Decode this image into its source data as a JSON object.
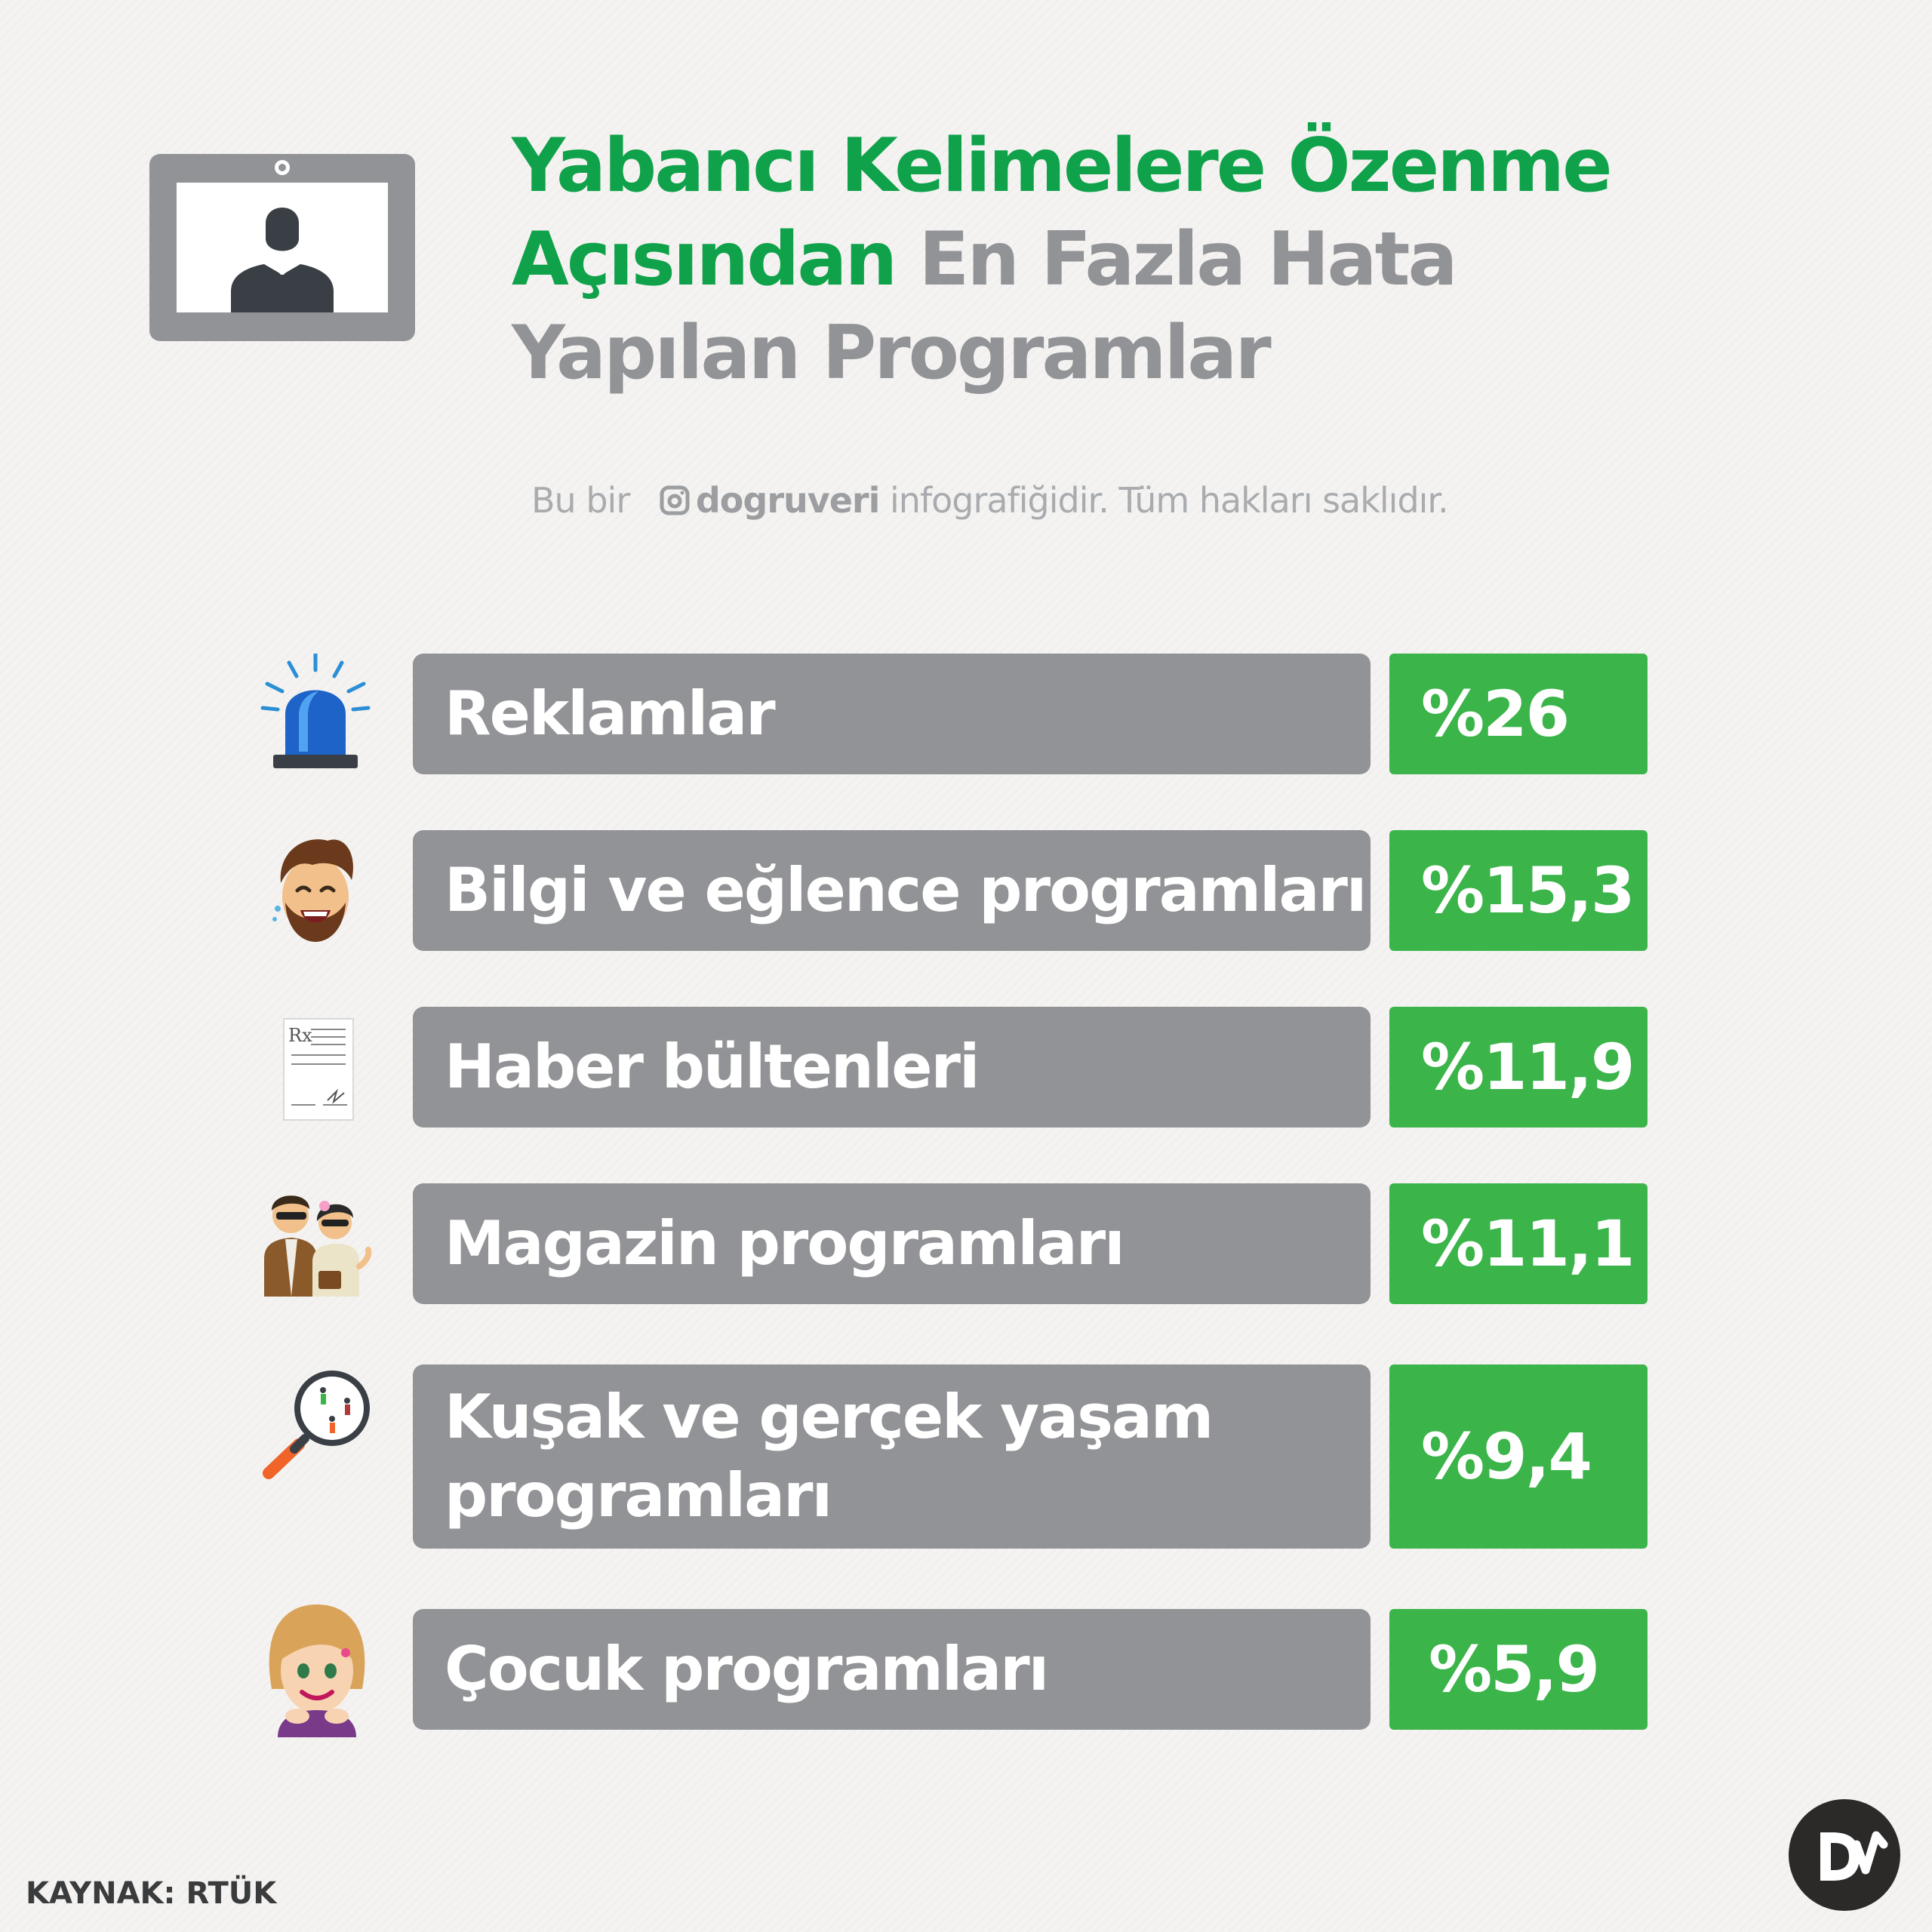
{
  "title": {
    "line1": "Yabancı Kelimelere Özenme",
    "line2_green": "Açısından",
    "line2_gray": " En Fazla Hata",
    "line3": "Yapılan Programlar"
  },
  "credit": {
    "prefix": "Bu bir",
    "brand": "dogruveri",
    "suffix": " infografiğidir. Tüm hakları saklıdır."
  },
  "chart_data": {
    "type": "table",
    "title": "Yabancı Kelimelere Özenme Açısından En Fazla Hata Yapılan Programlar",
    "unit": "%",
    "categories": [
      "Reklamlar",
      "Bilgi ve eğlence programları",
      "Haber bültenleri",
      "Magazin programları",
      "Kuşak ve gerçek yaşam programları",
      "Çocuk programları"
    ],
    "values": [
      26,
      15.3,
      11.9,
      11.1,
      9.4,
      5.9
    ],
    "labels": [
      "%26",
      "%15,3",
      "%11,9",
      "%11,1",
      "%9,4",
      "%5,9"
    ],
    "rows": [
      {
        "label": "Reklamlar",
        "value": "%26",
        "icon": "siren-icon"
      },
      {
        "label": "Bilgi ve eğlence programları",
        "value": "%15,3",
        "icon": "laughing-man-icon"
      },
      {
        "label": "Haber bültenleri",
        "value": "%11,9",
        "icon": "document-icon"
      },
      {
        "label": "Magazin programları",
        "value": "%11,1",
        "icon": "celebrity-couple-icon"
      },
      {
        "label": "Kuşak ve gerçek yaşam programları",
        "value": "%9,4",
        "icon": "magnifier-people-icon"
      },
      {
        "label": "Çocuk programları",
        "value": "%5,9",
        "icon": "smiling-girl-icon"
      }
    ]
  },
  "source": "KAYNAK: RTÜK",
  "logo_text": "DV",
  "colors": {
    "title_green": "#0fa24a",
    "gray": "#929396",
    "value_green": "#3bb44a",
    "background": "#f4f3f1"
  }
}
